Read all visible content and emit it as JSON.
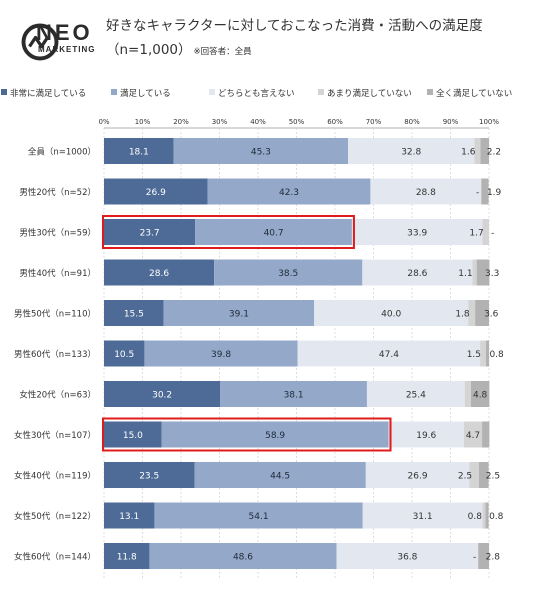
{
  "brand": {
    "name": "NEO",
    "sub": "MARKETING"
  },
  "header": {
    "title_line1": "好きなキャラクターに対しておこなった消費・活動への満足度",
    "title_line2": "（n=1,000）",
    "note": "※回答者：全員"
  },
  "colors": {
    "s1": "#4d6b96",
    "s2": "#94a9c9",
    "s3": "#e3e8f0",
    "s4": "#d4d4d4",
    "s5": "#b2b2b2",
    "highlight": "#e01b1b"
  },
  "chart_data": {
    "type": "bar",
    "orientation": "horizontal",
    "stacked": true,
    "percent": true,
    "xlim": [
      0,
      100
    ],
    "xticks": [
      "0%",
      "10%",
      "20%",
      "30%",
      "40%",
      "50%",
      "60%",
      "70%",
      "80%",
      "90%",
      "100%"
    ],
    "categories": [
      "全員（n=1000）",
      "男性20代（n=52）",
      "男性30代（n=59）",
      "男性40代（n=91）",
      "男性50代（n=110）",
      "男性60代（n=133）",
      "女性20代（n=63）",
      "女性30代（n=107）",
      "女性40代（n=119）",
      "女性50代（n=122）",
      "女性60代（n=144）"
    ],
    "series": [
      {
        "name": "非常に満足している",
        "values": [
          18.1,
          26.9,
          23.7,
          28.6,
          15.5,
          10.5,
          30.2,
          15.0,
          23.5,
          13.1,
          11.8
        ],
        "labels": [
          "18.1",
          "26.9",
          "23.7",
          "28.6",
          "15.5",
          "10.5",
          "30.2",
          "15.0",
          "23.5",
          "13.1",
          "11.8"
        ]
      },
      {
        "name": "満足している",
        "values": [
          45.3,
          42.3,
          40.7,
          38.5,
          39.1,
          39.8,
          38.1,
          58.9,
          44.5,
          54.1,
          48.6
        ],
        "labels": [
          "45.3",
          "42.3",
          "40.7",
          "38.5",
          "39.1",
          "39.8",
          "38.1",
          "58.9",
          "44.5",
          "54.1",
          "48.6"
        ]
      },
      {
        "name": "どちらとも言えない",
        "values": [
          32.8,
          28.8,
          33.9,
          28.6,
          40.0,
          47.4,
          25.4,
          19.6,
          26.9,
          31.1,
          36.8
        ],
        "labels": [
          "32.8",
          "28.8",
          "33.9",
          "28.6",
          "40.0",
          "47.4",
          "25.4",
          "19.6",
          "26.9",
          "31.1",
          "36.8"
        ]
      },
      {
        "name": "あまり満足していない",
        "values": [
          1.6,
          0,
          1.7,
          1.1,
          1.8,
          1.5,
          1.6,
          4.7,
          2.5,
          0.8,
          0
        ],
        "labels": [
          "1.6",
          "-",
          "1.7",
          "1.1",
          "1.8",
          "1.5",
          "",
          "4.7",
          "2.5",
          "0.8",
          "-"
        ]
      },
      {
        "name": "全く満足していない",
        "values": [
          2.2,
          1.9,
          0,
          3.3,
          3.6,
          0.8,
          4.8,
          1.9,
          2.5,
          0.8,
          2.8
        ],
        "labels": [
          "2.2",
          "1.9",
          "-",
          "3.3",
          "3.6",
          "0.8",
          "4.8",
          "",
          "2.5",
          "0.8",
          "2.8"
        ]
      }
    ],
    "highlighted_rows": [
      2,
      7
    ],
    "grid": true,
    "legend_position": "top"
  }
}
